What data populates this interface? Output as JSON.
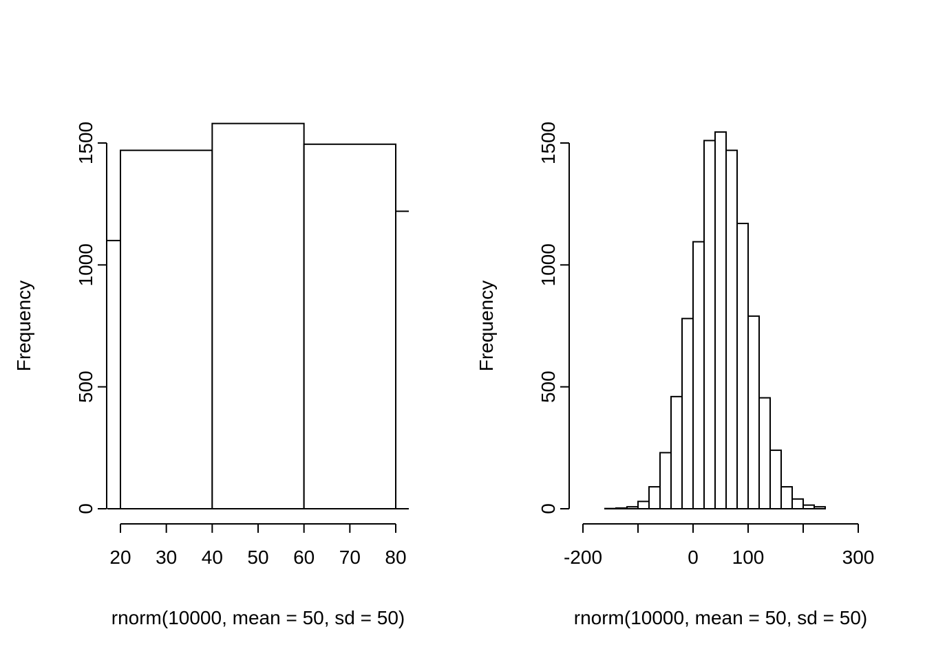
{
  "figure": {
    "background": "#ffffff",
    "foreground": "#000000",
    "layout_hint": "two R base-graphics histograms side by side, no titles, no grid, no legend"
  },
  "chart_data": [
    {
      "type": "bar",
      "subtype": "histogram",
      "title": "",
      "xlabel": "rnorm(10000, mean = 50, sd = 50)",
      "ylabel": "Frequency",
      "bin_start": 0,
      "bin_width": 20,
      "counts": [
        1100,
        1470,
        1580,
        1495,
        1220
      ],
      "x_axis_range": [
        20,
        80
      ],
      "x_ticks": [
        20,
        30,
        40,
        50,
        60,
        70,
        80
      ],
      "x_tick_labels": [
        "20",
        "30",
        "40",
        "50",
        "60",
        "70",
        "80"
      ],
      "y_axis_range": [
        0,
        1500
      ],
      "y_ticks": [
        0,
        500,
        1000,
        1500
      ],
      "y_tick_labels": [
        "0",
        "500",
        "1000",
        "1500"
      ],
      "grid": false,
      "legend": null,
      "bar_fill": "#ffffff",
      "bar_stroke": "#000000",
      "note": "bars clipped at plot edges: partial bar of 1100 visible left of x=20, partial bar of 1220 visible right of x=80"
    },
    {
      "type": "bar",
      "subtype": "histogram",
      "title": "",
      "xlabel": "rnorm(10000, mean = 50, sd = 50)",
      "ylabel": "Frequency",
      "bin_start": -160,
      "bin_width": 20,
      "counts": [
        1,
        3,
        8,
        30,
        90,
        230,
        460,
        780,
        1095,
        1510,
        1545,
        1470,
        1170,
        790,
        455,
        240,
        90,
        40,
        15,
        8
      ],
      "x_axis_range": [
        -200,
        300
      ],
      "x_ticks": [
        -200,
        -100,
        0,
        100,
        200,
        300
      ],
      "x_tick_labels": [
        "-200",
        "",
        "0",
        "100",
        "",
        "300"
      ],
      "y_axis_range": [
        0,
        1500
      ],
      "y_ticks": [
        0,
        500,
        1000,
        1500
      ],
      "y_tick_labels": [
        "0",
        "500",
        "1000",
        "1500"
      ],
      "grid": false,
      "legend": null,
      "bar_fill": "#ffffff",
      "bar_stroke": "#000000"
    }
  ]
}
